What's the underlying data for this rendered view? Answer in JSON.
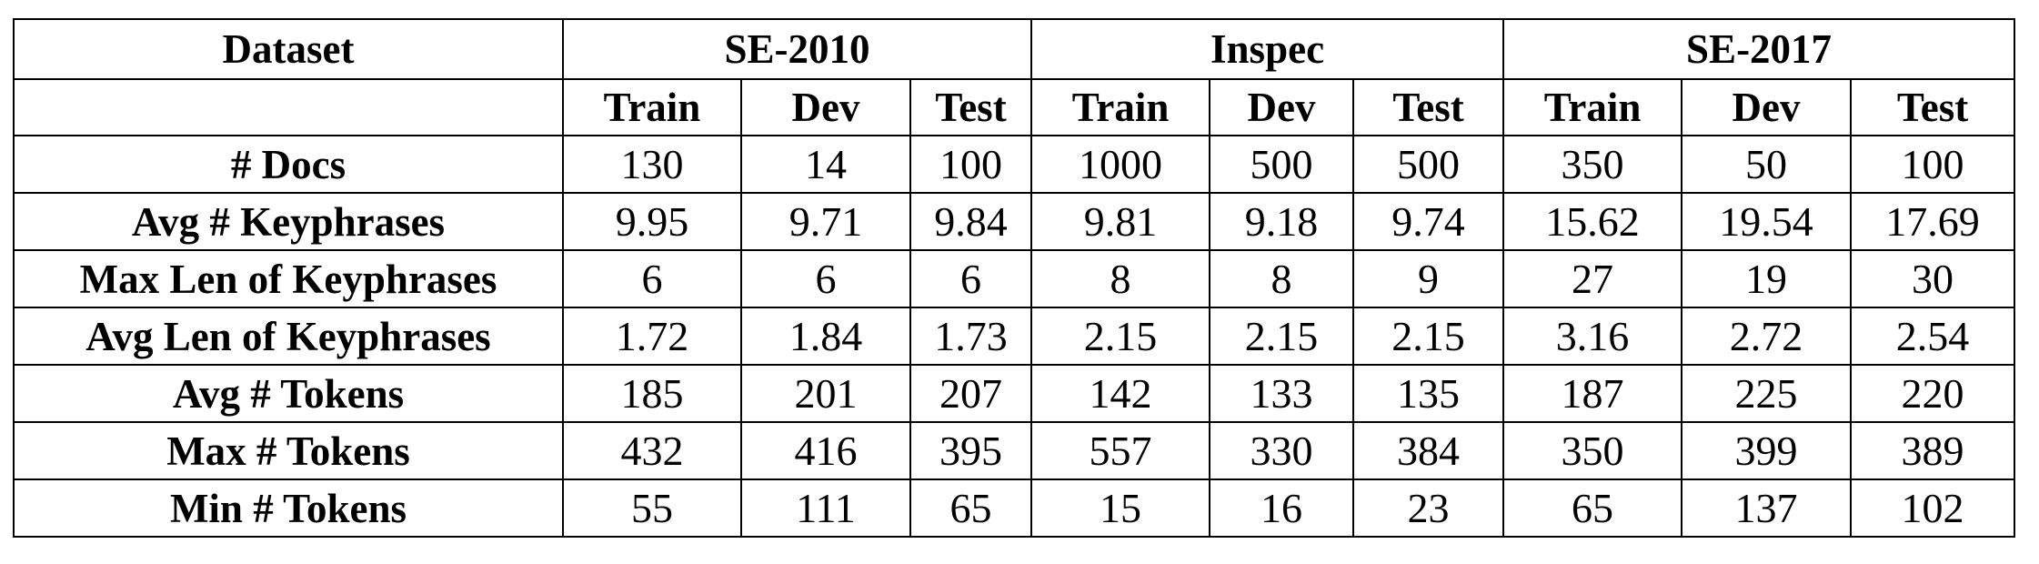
{
  "table": {
    "dataset_label": "Dataset",
    "groups": [
      "SE-2010",
      "Inspec",
      "SE-2017"
    ],
    "splits": [
      "Train",
      "Dev",
      "Test",
      "Train",
      "Dev",
      "Test",
      "Train",
      "Dev",
      "Test"
    ],
    "rows": [
      {
        "label": "# Docs",
        "values": [
          "130",
          "14",
          "100",
          "1000",
          "500",
          "500",
          "350",
          "50",
          "100"
        ]
      },
      {
        "label": "Avg # Keyphrases",
        "values": [
          "9.95",
          "9.71",
          "9.84",
          "9.81",
          "9.18",
          "9.74",
          "15.62",
          "19.54",
          "17.69"
        ]
      },
      {
        "label": "Max Len of Keyphrases",
        "values": [
          "6",
          "6",
          "6",
          "8",
          "8",
          "9",
          "27",
          "19",
          "30"
        ]
      },
      {
        "label": "Avg Len of Keyphrases",
        "values": [
          "1.72",
          "1.84",
          "1.73",
          "2.15",
          "2.15",
          "2.15",
          "3.16",
          "2.72",
          "2.54"
        ]
      },
      {
        "label": "Avg # Tokens",
        "values": [
          "185",
          "201",
          "207",
          "142",
          "133",
          "135",
          "187",
          "225",
          "220"
        ]
      },
      {
        "label": "Max # Tokens",
        "values": [
          "432",
          "416",
          "395",
          "557",
          "330",
          "384",
          "350",
          "399",
          "389"
        ]
      },
      {
        "label": "Min # Tokens",
        "values": [
          "55",
          "111",
          "65",
          "15",
          "16",
          "23",
          "65",
          "137",
          "102"
        ]
      }
    ]
  }
}
